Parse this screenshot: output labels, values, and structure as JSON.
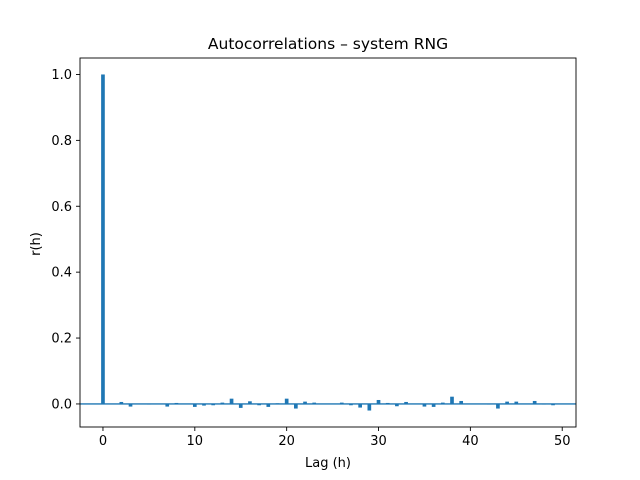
{
  "chart_data": {
    "type": "bar",
    "title": "Autocorrelations – system RNG",
    "xlabel": "Lag (h)",
    "ylabel": "r(h)",
    "xlim": [
      -2.5,
      51.5
    ],
    "ylim": [
      -0.07,
      1.05
    ],
    "xticks": [
      0,
      10,
      20,
      30,
      40,
      50
    ],
    "yticks": [
      0.0,
      0.2,
      0.4,
      0.6,
      0.8,
      1.0
    ],
    "ytick_labels": [
      "0.0",
      "0.2",
      "0.4",
      "0.6",
      "0.8",
      "1.0"
    ],
    "grid": false,
    "baseline": 0,
    "bar_color": "#1f77b4",
    "x": [
      0,
      1,
      2,
      3,
      4,
      5,
      6,
      7,
      8,
      9,
      10,
      11,
      12,
      13,
      14,
      15,
      16,
      17,
      18,
      19,
      20,
      21,
      22,
      23,
      24,
      25,
      26,
      27,
      28,
      29,
      30,
      31,
      32,
      33,
      34,
      35,
      36,
      37,
      38,
      39,
      40,
      41,
      42,
      43,
      44,
      45,
      46,
      47,
      48,
      49
    ],
    "values": [
      1.0,
      0.001,
      0.006,
      -0.008,
      0.001,
      -0.001,
      0.001,
      -0.008,
      0.003,
      0.001,
      -0.009,
      -0.005,
      -0.004,
      0.004,
      0.016,
      -0.012,
      0.008,
      -0.004,
      -0.009,
      0.002,
      0.016,
      -0.014,
      0.007,
      0.004,
      0.001,
      0.001,
      0.004,
      -0.004,
      -0.011,
      -0.02,
      0.012,
      0.003,
      -0.007,
      0.006,
      0.001,
      -0.008,
      -0.009,
      0.004,
      0.022,
      0.009,
      0.001,
      0.001,
      -0.001,
      -0.014,
      0.007,
      0.007,
      0.001,
      0.009,
      -0.001,
      -0.004
    ]
  }
}
